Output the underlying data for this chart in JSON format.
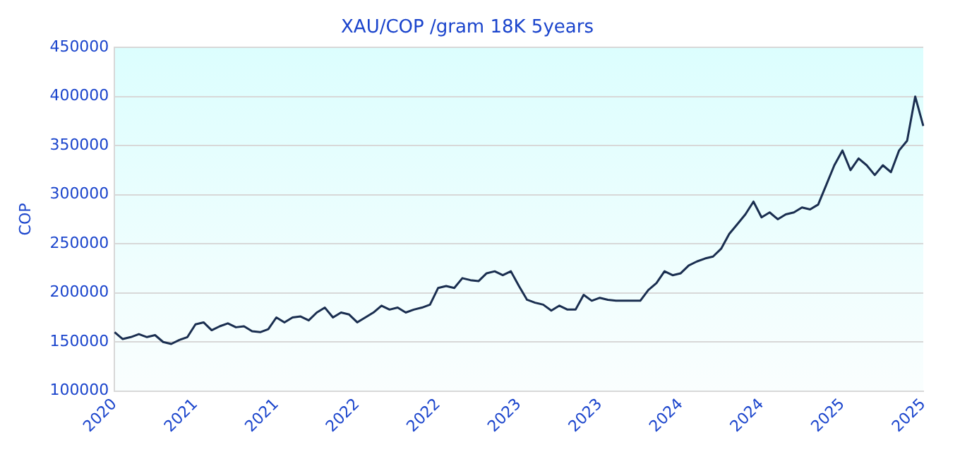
{
  "chart_data": {
    "type": "line",
    "title": "XAU/COP /gram 18K 5years",
    "ylabel": "COP",
    "categories": [
      "2020",
      null,
      null,
      null,
      null,
      null,
      null,
      null,
      null,
      null,
      "2021",
      null,
      null,
      null,
      null,
      null,
      null,
      null,
      null,
      null,
      "2021",
      null,
      null,
      null,
      null,
      null,
      null,
      null,
      null,
      null,
      "2022",
      null,
      null,
      null,
      null,
      null,
      null,
      null,
      null,
      null,
      "2022",
      null,
      null,
      null,
      null,
      null,
      null,
      null,
      null,
      null,
      "2023",
      null,
      null,
      null,
      null,
      null,
      null,
      null,
      null,
      null,
      "2023",
      null,
      null,
      null,
      null,
      null,
      null,
      null,
      null,
      null,
      "2024",
      null,
      null,
      null,
      null,
      null,
      null,
      null,
      null,
      null,
      "2024",
      null,
      null,
      null,
      null,
      null,
      null,
      null,
      null,
      null,
      "2025",
      null,
      null,
      null,
      null,
      null,
      null,
      null,
      null,
      null,
      "2025"
    ],
    "series": [
      {
        "color": "#1a2e50",
        "values": [
          160000,
          153000,
          155000,
          158000,
          155000,
          157000,
          150000,
          148000,
          152000,
          155000,
          168000,
          170000,
          162000,
          166000,
          169000,
          165000,
          166000,
          161000,
          160000,
          163000,
          175000,
          170000,
          175000,
          176000,
          172000,
          180000,
          185000,
          175000,
          180000,
          178000,
          170000,
          175000,
          180000,
          187000,
          183000,
          185000,
          180000,
          183000,
          185000,
          188000,
          205000,
          207000,
          205000,
          215000,
          213000,
          212000,
          220000,
          222000,
          218000,
          222000,
          207000,
          193000,
          190000,
          188000,
          182000,
          187000,
          183000,
          183000,
          198000,
          192000,
          195000,
          193000,
          192000,
          192000,
          192000,
          192000,
          203000,
          210000,
          222000,
          218000,
          220000,
          228000,
          232000,
          235000,
          237000,
          245000,
          260000,
          270000,
          280000,
          293000,
          277000,
          282000,
          275000,
          280000,
          282000,
          287000,
          285000,
          290000,
          310000,
          330000,
          345000,
          325000,
          337000,
          330000,
          320000,
          330000,
          323000,
          345000,
          355000,
          400000,
          370000
        ]
      }
    ],
    "ylim": [
      100000,
      450000
    ],
    "yticks": [
      100000,
      150000,
      200000,
      250000,
      300000,
      350000,
      400000,
      450000
    ],
    "grid": "y",
    "legend": false,
    "marker": "none",
    "line_style": "solid"
  }
}
